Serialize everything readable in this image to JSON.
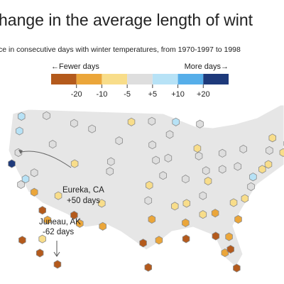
{
  "chart_data": {
    "type": "hexmap",
    "title": "hange in the average length of wint",
    "subtitle": "ce in consecutive days with winter temperatures, from 1970-1997 to 1998",
    "legend": {
      "left_label": "←Fewer days",
      "right_label": "More days→",
      "colors": [
        "#b45a1c",
        "#eba63a",
        "#f8dd8a",
        "#dedede",
        "#b7e2f6",
        "#56aee9",
        "#1e3a7b"
      ],
      "ticks": [
        -20,
        -10,
        -5,
        {
          "value": 5,
          "label": "+5"
        },
        {
          "value": 10,
          "label": "+10"
        },
        {
          "value": 20,
          "label": "+20"
        }
      ]
    },
    "stations": {
      "lon": [
        -124.2,
        -122.3,
        -122.7,
        -122.9,
        -121.5,
        -122.4,
        -119.8,
        -118.2,
        -117.2,
        -119.8,
        -116.2,
        -117.4,
        -112,
        -111.9,
        -115.1,
        -112,
        -110.9,
        -106.6,
        -106.4,
        -105,
        -104.8,
        -108.5,
        -103.2,
        -100.8,
        -96.8,
        -96.7,
        -96,
        -97.3,
        -97.5,
        -96.8,
        -95.4,
        -98.5,
        -97.5,
        -93.3,
        -93.6,
        -94.6,
        -92.3,
        -90.1,
        -90.2,
        -87.6,
        -87.9,
        -90.2,
        -90,
        -86.8,
        -86.8,
        -86.2,
        -83,
        -83,
        -85.8,
        -84.4,
        -84.3,
        -82.5,
        -81.4,
        -80.2,
        -81.7,
        -80.8,
        -78.6,
        -79.9,
        -77.4,
        -77,
        -80,
        -75.2,
        -74,
        -78.9,
        -73.8,
        -71.1,
        -73.2,
        -70.3,
        -87.4,
        -92.1
      ],
      "lat": [
        40.8,
        47.6,
        45.5,
        42.4,
        38.6,
        37.8,
        36.7,
        34.1,
        32.7,
        39.5,
        43.6,
        47.7,
        46.6,
        40.8,
        36.2,
        33.4,
        32.2,
        35.1,
        31.8,
        39.7,
        41.1,
        45.8,
        44.1,
        46.8,
        46.9,
        43.5,
        41.3,
        37.7,
        35.5,
        32.8,
        29.8,
        29.4,
        25.9,
        45,
        41.6,
        39.1,
        34.7,
        30,
        32.3,
        41.9,
        43,
        38.6,
        35.1,
        36.2,
        33.5,
        39.8,
        42.3,
        40,
        38.3,
        33.7,
        30.4,
        28,
        28.5,
        25.8,
        30.3,
        35.2,
        35.8,
        32.8,
        37.5,
        38.9,
        40.4,
        40,
        40.7,
        42.9,
        42.7,
        42.4,
        44.5,
        43.7,
        46.5,
        46.8
      ],
      "values": [
        50,
        5,
        8,
        3,
        8,
        -2,
        -12,
        -25,
        -15,
        0,
        -3,
        -4,
        2,
        -6,
        -8,
        -22,
        -12,
        -7,
        -15,
        0,
        -3,
        2,
        -1,
        -6,
        0,
        2,
        -4,
        -7,
        -2,
        -12,
        -18,
        -25,
        -30,
        3,
        -1,
        -5,
        -8,
        -22,
        -14,
        -2,
        -6,
        1,
        -10,
        -3,
        -7,
        4,
        -4,
        0,
        -6,
        -12,
        -25,
        -18,
        -28,
        -35,
        -15,
        -6,
        -8,
        -11,
        -4,
        6,
        -3,
        -7,
        -10,
        2,
        -4,
        -6,
        -8,
        3,
        -5,
        8
      ]
    },
    "alaska": {
      "lon": [
        -134.4,
        -149.9,
        -147.7,
        -165.4
      ],
      "lat": [
        58.3,
        61.2,
        64.8,
        64.5
      ],
      "values": [
        -62,
        -22,
        -8,
        -30
      ]
    },
    "annotations": [
      {
        "text": "Eureka, CA",
        "value_label": "+50 days"
      },
      {
        "text": "Juneau, AK",
        "value_label": "-62 days"
      }
    ]
  }
}
